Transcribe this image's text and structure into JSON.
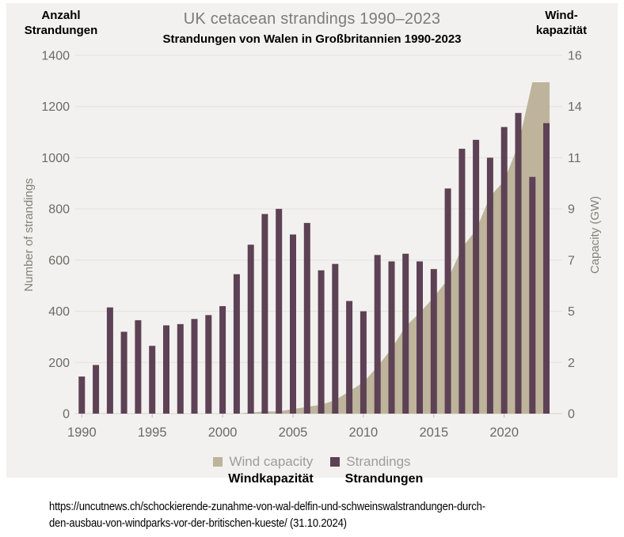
{
  "header": {
    "left_line1": "Anzahl",
    "left_line2": "Strandungen",
    "title": "UK cetacean strandings 1990–2023",
    "subtitle": "Strandungen von Walen in Großbritannien 1990-2023",
    "right_line1": "Wind-",
    "right_line2": "kapazität"
  },
  "chart_data": {
    "type": "combo-bar-area",
    "x": [
      1990,
      1991,
      1992,
      1993,
      1994,
      1995,
      1996,
      1997,
      1998,
      1999,
      2000,
      2001,
      2002,
      2003,
      2004,
      2005,
      2006,
      2007,
      2008,
      2009,
      2010,
      2011,
      2012,
      2013,
      2014,
      2015,
      2016,
      2017,
      2018,
      2019,
      2020,
      2021,
      2022,
      2023
    ],
    "series": [
      {
        "name": "Wind capacity",
        "type": "area",
        "axis": "right",
        "color": "#bdb49b",
        "values": [
          0,
          0,
          0,
          0,
          0,
          0,
          0,
          0,
          0,
          0,
          0,
          0,
          0.05,
          0.1,
          0.1,
          0.2,
          0.3,
          0.4,
          0.6,
          1.0,
          1.4,
          2.1,
          2.9,
          3.9,
          4.5,
          5.2,
          6.0,
          7.4,
          8.2,
          9.7,
          10.4,
          12.0,
          14.8,
          14.8
        ]
      },
      {
        "name": "Strandings",
        "type": "bar",
        "axis": "left",
        "color": "#5d4154",
        "values": [
          145,
          190,
          415,
          320,
          365,
          265,
          345,
          350,
          370,
          385,
          420,
          545,
          660,
          780,
          800,
          700,
          745,
          560,
          585,
          440,
          400,
          620,
          595,
          625,
          595,
          565,
          880,
          1035,
          1070,
          1000,
          1120,
          1175,
          925,
          1135
        ]
      }
    ],
    "left_axis": {
      "label": "Number of strandings",
      "min": 0,
      "max": 1400,
      "step": 200
    },
    "right_axis": {
      "label": "Capacity (GW)",
      "min": 0,
      "max": 16,
      "step": 2
    },
    "x_ticks": [
      1990,
      1995,
      2000,
      2005,
      2010,
      2015,
      2020
    ],
    "grid": true,
    "legend_position": "bottom"
  },
  "legend": {
    "wind_label": "Wind capacity",
    "strandings_label": "Strandings"
  },
  "legend_de": {
    "wind_label": "Windkapazität",
    "strandings_label": "Strandungen"
  },
  "source": {
    "line1": "https://uncutnews.ch/schockierende-zunahme-von-wal-delfin-und-schweinswalstrandungen-durch-",
    "line2": "den-ausbau-von-windparks-vor-der-britischen-kueste/ (31.10.2024)"
  },
  "colors": {
    "bar": "#5d4154",
    "area": "#bdb49b",
    "panel_bg": "#f2f1ef",
    "title_text": "#7b7b7b",
    "axis_text": "#6d6a66",
    "grid_line": "#e3e1dd",
    "legend_text": "#9c9c9c"
  }
}
